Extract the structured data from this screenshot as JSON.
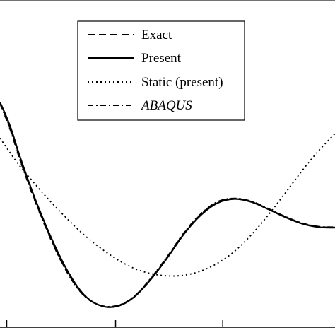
{
  "chart_data": {
    "type": "line",
    "title": "",
    "xlabel": "",
    "ylabel": "",
    "xlim": [
      0,
      1
    ],
    "ylim": [
      0,
      1
    ],
    "x_ticks": [
      0.02,
      0.345,
      0.665
    ],
    "legend": {
      "placement": "top-center",
      "entries": [
        {
          "label": "Exact",
          "style": "dashed",
          "italic": false
        },
        {
          "label": "Present",
          "style": "solid",
          "italic": false
        },
        {
          "label": "Static (present)",
          "style": "dotted",
          "italic": false
        },
        {
          "label": "ABAQUS",
          "style": "dashdot",
          "italic": true
        }
      ]
    },
    "series": [
      {
        "name": "Exact",
        "style": "dashed",
        "x": [
          0,
          0.03,
          0.06,
          0.1,
          0.15,
          0.2,
          0.25,
          0.3,
          0.35,
          0.4,
          0.45,
          0.5,
          0.55,
          0.6,
          0.65,
          0.7,
          0.75,
          0.8,
          0.85,
          0.9,
          0.95,
          1.0
        ],
        "y": [
          0.685,
          0.61,
          0.515,
          0.4,
          0.275,
          0.17,
          0.098,
          0.066,
          0.065,
          0.093,
          0.148,
          0.215,
          0.288,
          0.345,
          0.382,
          0.393,
          0.384,
          0.362,
          0.338,
          0.318,
          0.307,
          0.305
        ]
      },
      {
        "name": "Present",
        "style": "solid",
        "x": [
          0,
          0.03,
          0.06,
          0.1,
          0.15,
          0.2,
          0.25,
          0.3,
          0.35,
          0.4,
          0.45,
          0.5,
          0.55,
          0.6,
          0.65,
          0.7,
          0.75,
          0.8,
          0.85,
          0.9,
          0.95,
          1.0
        ],
        "y": [
          0.688,
          0.615,
          0.52,
          0.405,
          0.28,
          0.175,
          0.1,
          0.066,
          0.064,
          0.092,
          0.146,
          0.213,
          0.286,
          0.343,
          0.38,
          0.392,
          0.383,
          0.361,
          0.337,
          0.317,
          0.306,
          0.304
        ]
      },
      {
        "name": "Static (present)",
        "style": "dotted",
        "x": [
          0,
          0.05,
          0.1,
          0.15,
          0.2,
          0.25,
          0.3,
          0.35,
          0.4,
          0.45,
          0.5,
          0.55,
          0.6,
          0.65,
          0.7,
          0.75,
          0.8,
          0.85,
          0.9,
          0.95,
          1.0
        ],
        "y": [
          0.578,
          0.505,
          0.443,
          0.385,
          0.332,
          0.283,
          0.242,
          0.207,
          0.18,
          0.164,
          0.157,
          0.159,
          0.172,
          0.196,
          0.232,
          0.282,
          0.342,
          0.408,
          0.476,
          0.538,
          0.592
        ]
      },
      {
        "name": "ABAQUS",
        "style": "dashdot",
        "x": [
          0,
          0.03,
          0.06,
          0.1,
          0.15,
          0.2,
          0.25,
          0.3,
          0.35,
          0.4,
          0.45,
          0.5,
          0.55,
          0.6,
          0.65,
          0.7,
          0.75,
          0.8,
          0.85,
          0.9,
          0.95,
          1.0
        ],
        "y": [
          0.683,
          0.605,
          0.51,
          0.397,
          0.272,
          0.168,
          0.097,
          0.067,
          0.066,
          0.094,
          0.15,
          0.217,
          0.29,
          0.347,
          0.384,
          0.394,
          0.385,
          0.363,
          0.339,
          0.319,
          0.308,
          0.306
        ]
      }
    ]
  }
}
